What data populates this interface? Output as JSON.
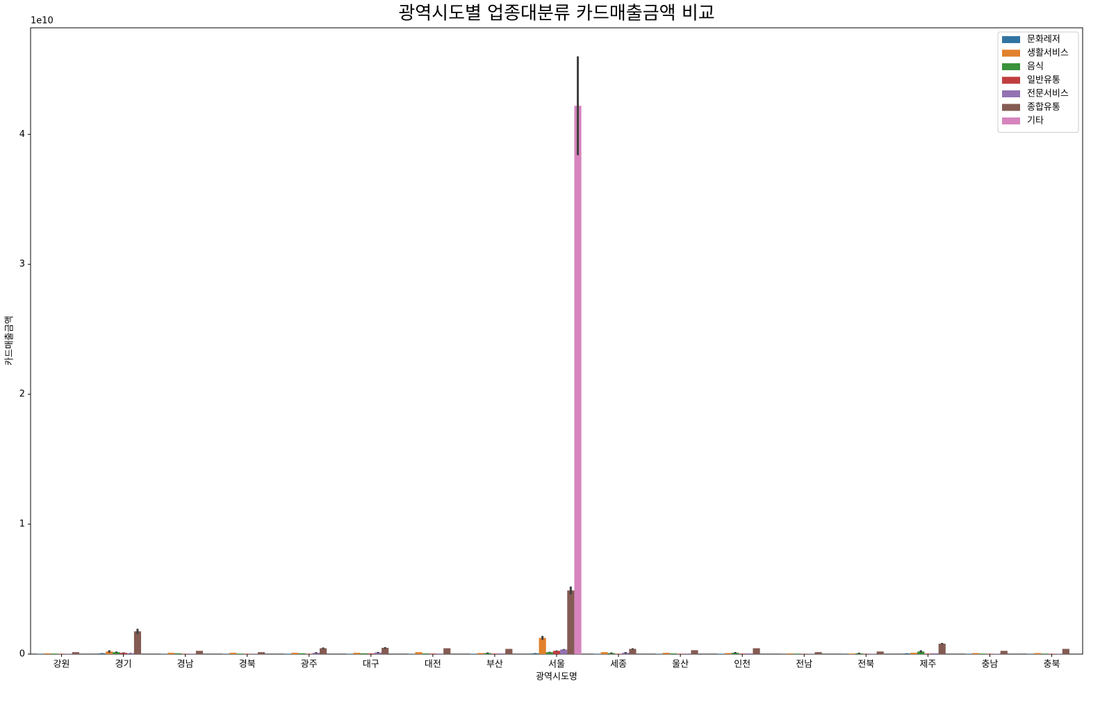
{
  "chart_data": {
    "type": "bar",
    "title": "광역시도별 업종대분류 카드매출금액 비교",
    "x_label": "광역시도명",
    "y_label": "카드매출금액",
    "y_offset_label": "1e10",
    "categories": [
      "강원",
      "경기",
      "경남",
      "경북",
      "광주",
      "대구",
      "대전",
      "부산",
      "서울",
      "세종",
      "울산",
      "인천",
      "전남",
      "전북",
      "제주",
      "충남",
      "충북"
    ],
    "ylim": [
      0,
      4.82
    ],
    "yticks": [
      0,
      1,
      2,
      3,
      4
    ],
    "grid": false,
    "legend": "upper right",
    "series": [
      {
        "name": "문화레저",
        "color": "#3274a1",
        "values": [
          0.002,
          0.006,
          0.002,
          0.002,
          0.003,
          0.003,
          0.002,
          0.003,
          0.006,
          0.003,
          0.002,
          0.003,
          0.001,
          0.001,
          0.005,
          0.002,
          0.002
        ],
        "errors": [
          0,
          0.002,
          0,
          0,
          0,
          0,
          0,
          0,
          0.002,
          0,
          0,
          0,
          0,
          0,
          0.002,
          0,
          0
        ]
      },
      {
        "name": "생활서비스",
        "color": "#e1812c",
        "values": [
          0.006,
          0.02,
          0.01,
          0.01,
          0.01,
          0.01,
          0.015,
          0.008,
          0.125,
          0.015,
          0.01,
          0.008,
          0.005,
          0.004,
          0.01,
          0.008,
          0.008
        ],
        "errors": [
          0,
          0.01,
          0,
          0,
          0,
          0,
          0,
          0,
          0.015,
          0,
          0,
          0,
          0,
          0,
          0,
          0,
          0
        ]
      },
      {
        "name": "음식",
        "color": "#3a923a",
        "values": [
          0.004,
          0.015,
          0.006,
          0.004,
          0.006,
          0.006,
          0.005,
          0.008,
          0.015,
          0.008,
          0.005,
          0.01,
          0.004,
          0.006,
          0.02,
          0.004,
          0.004
        ],
        "errors": [
          0,
          0.005,
          0,
          0,
          0,
          0,
          0,
          0.005,
          0.003,
          0.005,
          0,
          0.006,
          0,
          0.005,
          0.01,
          0,
          0
        ]
      },
      {
        "name": "일반유통",
        "color": "#c03d3e",
        "values": [
          0.003,
          0.01,
          0.003,
          0.003,
          0.003,
          0.005,
          0.004,
          0.004,
          0.025,
          0.003,
          0.003,
          0.004,
          0.002,
          0.002,
          0.004,
          0.003,
          0.003
        ],
        "errors": [
          0,
          0.003,
          0,
          0,
          0,
          0,
          0,
          0,
          0.003,
          0,
          0,
          0,
          0,
          0,
          0,
          0,
          0
        ]
      },
      {
        "name": "전문서비스",
        "color": "#9372b2",
        "values": [
          0.003,
          0.007,
          0.003,
          0.002,
          0.01,
          0.012,
          0.004,
          0.005,
          0.035,
          0.01,
          0.004,
          0.005,
          0.002,
          0.003,
          0.006,
          0.003,
          0.003
        ],
        "errors": [
          0,
          0.002,
          0,
          0,
          0.005,
          0.005,
          0,
          0,
          0.004,
          0.006,
          0,
          0,
          0,
          0,
          0,
          0,
          0
        ]
      },
      {
        "name": "종합유통",
        "color": "#845b53",
        "values": [
          0.015,
          0.175,
          0.025,
          0.015,
          0.045,
          0.048,
          0.045,
          0.04,
          0.49,
          0.04,
          0.03,
          0.045,
          0.015,
          0.02,
          0.08,
          0.025,
          0.04
        ],
        "errors": [
          0,
          0.02,
          0,
          0,
          0.006,
          0.006,
          0,
          0,
          0.03,
          0.005,
          0,
          0,
          0,
          0,
          0.006,
          0,
          0
        ]
      },
      {
        "name": "기타",
        "color": "#d684bd",
        "values": [
          null,
          null,
          null,
          null,
          null,
          null,
          null,
          null,
          4.22,
          null,
          null,
          null,
          null,
          null,
          null,
          null,
          null
        ],
        "errors": [
          null,
          null,
          null,
          null,
          null,
          null,
          null,
          null,
          0.38,
          null,
          null,
          null,
          null,
          null,
          null,
          null,
          null
        ]
      }
    ]
  }
}
